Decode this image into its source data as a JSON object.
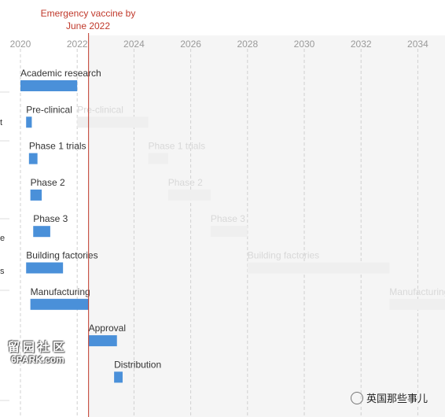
{
  "chart_data": {
    "type": "gantt",
    "title": "",
    "xlabel": "",
    "ylabel": "",
    "x_ticks": [
      "2020",
      "2022",
      "2024",
      "2026",
      "2028",
      "2030",
      "2032",
      "2034"
    ],
    "xlim": [
      2020,
      2035
    ],
    "grid": true,
    "annotation": {
      "line1": "Emergency vaccine by",
      "line2": "June 2022",
      "x": 2022.4
    },
    "rows": [
      {
        "name": "Academic research",
        "fast": [
          2020.0,
          2022.0
        ],
        "slow": null
      },
      {
        "name": "Pre-clinical",
        "fast": [
          2020.2,
          2020.4
        ],
        "slow": [
          2022.0,
          2024.5
        ]
      },
      {
        "name": "Phase 1 trials",
        "fast": [
          2020.3,
          2020.6
        ],
        "slow": [
          2024.5,
          2025.2
        ]
      },
      {
        "name": "Phase 2",
        "fast": [
          2020.35,
          2020.75
        ],
        "slow": [
          2025.2,
          2026.7
        ]
      },
      {
        "name": "Phase 3",
        "fast": [
          2020.45,
          2021.05
        ],
        "slow": [
          2026.7,
          2028.0
        ]
      },
      {
        "name": "Building factories",
        "fast": [
          2020.2,
          2021.5
        ],
        "slow": [
          2028.0,
          2033.0
        ]
      },
      {
        "name": "Manufacturing",
        "fast": [
          2020.35,
          2022.4
        ],
        "slow": [
          2033.0,
          2035.0
        ]
      },
      {
        "name": "Approval",
        "fast": [
          2022.4,
          2023.4
        ],
        "slow": null
      },
      {
        "name": "Distribution",
        "fast": [
          2023.3,
          2023.6
        ],
        "slow": null
      }
    ],
    "slow_labels": [
      "Pre-clinical",
      "Phase 1 trials",
      "Phase 2",
      "Phase 3",
      "Building factories",
      "Manufacturing"
    ],
    "left_fragments": [
      "t",
      "e",
      "s"
    ],
    "colors": {
      "fast": "#4a90d9",
      "slow": "#efefef",
      "annotation": "#c0392b",
      "grid": "#d0d0d0",
      "shade": "#f5f5f5"
    }
  },
  "watermarks": {
    "site_cn": "留园社区",
    "site": "6PARK.com",
    "account": "英国那些事儿"
  }
}
